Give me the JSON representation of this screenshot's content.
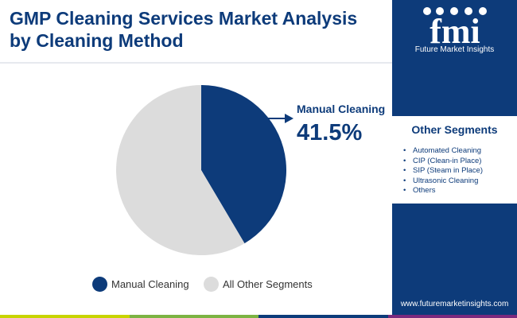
{
  "header": {
    "title": "GMP Cleaning Services Market Analysis by Cleaning Method"
  },
  "brand": {
    "logo_text": "fmi",
    "tagline": "Future Market Insights",
    "website": "www.futuremarketinsights.com"
  },
  "other_segments": {
    "title": "Other Segments",
    "items": [
      "Automated Cleaning",
      "CIP (Clean-in Place)",
      "SIP (Steam in Place)",
      "Ultrasonic Cleaning",
      "Others"
    ]
  },
  "colors": {
    "brand_navy": "#0d3b7a",
    "slice_primary": "#0d3b7a",
    "slice_other": "#dcdcdc",
    "bottom_bar": [
      "#c8d400",
      "#7cb342",
      "#0d3b7a",
      "#7b2a7e"
    ]
  },
  "chart_data": {
    "type": "pie",
    "slices": [
      {
        "label": "Manual Cleaning",
        "value": 41.5,
        "value_label": "41.5%"
      },
      {
        "label": "All Other Segments",
        "value": 58.5
      }
    ],
    "callout": {
      "label": "Manual Cleaning",
      "value_label": "41.5%"
    },
    "legend": {
      "placement": "bottom",
      "entries": [
        "Manual Cleaning",
        "All Other Segments"
      ]
    }
  }
}
